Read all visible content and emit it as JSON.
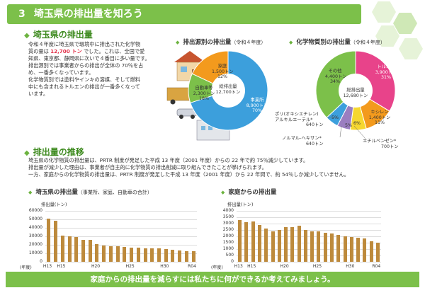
{
  "section": {
    "number": "3",
    "title": "埼玉県の排出量を知ろう"
  },
  "intro": {
    "heading": "埼玉県の排出量",
    "p1_a": "令和４年度に埼玉県で環境中に排出された化学物",
    "p1_b": "質の量は",
    "p1_value": "12,700 トン",
    "p1_c": "でした。これは、全国で愛",
    "p1_d": "知県、東京都、静岡県に次いで４番目に多い量です。",
    "p2_a": "排出源別では事業者からの排出が全体の 70％を占",
    "p2_b": "め、一番多くなっています。",
    "p3_a": "化学物質別では塗料やインキの溶媒、そして燃料",
    "p3_b": "中にも含まれるトルエンの排出が一番多くなって",
    "p3_c": "います。"
  },
  "colors": {
    "green": "#7cc04a",
    "orange": "#f39a1d",
    "blue": "#3c9fdc",
    "pink": "#e8438a",
    "yellow": "#f6d72f",
    "purple": "#9a7ec0",
    "bar": "#bd8a3c"
  },
  "pie_source": {
    "title": "排出源別の排出量",
    "note": "（令和４年度）",
    "center": [
      "総排出量",
      "12,700トン"
    ],
    "slices": [
      {
        "name": "家庭",
        "amount": "1,500トン",
        "pct": "12%"
      },
      {
        "name": "自動車等",
        "amount": "2,300トン",
        "pct": "18%"
      },
      {
        "name": "事業所",
        "amount": "8,900トン",
        "pct": "70%"
      }
    ]
  },
  "pie_chem": {
    "title": "化学物質別の排出量",
    "note": "（令和４年度）",
    "center": [
      "総排出量",
      "12,680トン"
    ],
    "slices": [
      {
        "name": "トルエン",
        "amount": "3,900トン",
        "pct": "31%"
      },
      {
        "name": "キシレン",
        "amount": "1,400トン",
        "pct": "11%"
      },
      {
        "name": "エチルベンゼン",
        "amount": "700トン",
        "pct": "6%"
      },
      {
        "name": "ノルマル-ヘキサン",
        "amount": "640トン",
        "pct": "5%"
      },
      {
        "name": "ポリ(オキシエチレン)アルキルエーテル",
        "amount": "640トン",
        "pct": "5%"
      },
      {
        "name": "その他",
        "amount": "4,400トン",
        "pct": "34%"
      }
    ],
    "labels": {
      "poly1": "ポリ(オキシエチレン)",
      "poly2": "アルキルエーテル*",
      "poly_amt": "640トン",
      "hexane": "ノルマル-ヘキサン*",
      "hexane_amt": "640トン",
      "ethyl": "エチルベンゼン*",
      "ethyl_amt": "700トン",
      "ethyl_pct": "6%",
      "hex_pct": "5%",
      "poly_pct": "5%"
    }
  },
  "trend": {
    "heading": "排出量の推移",
    "l1": "埼玉県の化学物質の排出量は、PRTR 制度が発足した平成 13 年度（2001 年度）からの 22 年で約 75％減少しています。",
    "l2": "排出量が減少した理由は、事業者が自主的に化学物質の排出削減に取り組んできたことが挙げられます。",
    "l3": "一方、家庭からの化学物質の排出量は、PRTR 制度が発足した平成 13 年度（2001 年度）から 22 年間で、約 54％しか減少していません。"
  },
  "chart_data": [
    {
      "type": "bar",
      "title": "埼玉県の排出量",
      "subtitle": "（事業所、家庭、自動車の合計）",
      "ylabel": "排出量(トン)",
      "xlabel": "(年度)",
      "ylim": [
        0,
        60000
      ],
      "yticks": [
        "60000",
        "50000",
        "40000",
        "30000",
        "20000",
        "10000",
        "0"
      ],
      "xticks": [
        "H13",
        "H15",
        "H20",
        "H25",
        "H30",
        "R04"
      ],
      "categories": [
        "H13",
        "H14",
        "H15",
        "H16",
        "H17",
        "H18",
        "H19",
        "H20",
        "H21",
        "H22",
        "H23",
        "H24",
        "H25",
        "H26",
        "H27",
        "H28",
        "H29",
        "H30",
        "R01",
        "R02",
        "R03",
        "R04"
      ],
      "values": [
        50800,
        48500,
        31000,
        30000,
        29500,
        26000,
        26000,
        21000,
        19500,
        18000,
        18000,
        17500,
        17000,
        16500,
        16000,
        16000,
        15500,
        15000,
        14500,
        13000,
        12500,
        12700
      ]
    },
    {
      "type": "bar",
      "title": "家庭からの排出量",
      "ylabel": "排出量(トン)",
      "xlabel": "(年度)",
      "ylim": [
        0,
        4000
      ],
      "yticks": [
        "4000",
        "3500",
        "3000",
        "2500",
        "2000",
        "1500",
        "1000",
        "500",
        "0"
      ],
      "xticks": [
        "H13",
        "H15",
        "H20",
        "H25",
        "H30",
        "R04"
      ],
      "categories": [
        "H13",
        "H14",
        "H15",
        "H16",
        "H17",
        "H18",
        "H19",
        "H20",
        "H21",
        "H22",
        "H23",
        "H24",
        "H25",
        "H26",
        "H27",
        "H28",
        "H29",
        "H30",
        "R01",
        "R02",
        "R03",
        "R04"
      ],
      "values": [
        3300,
        3100,
        3150,
        2900,
        2600,
        2400,
        2500,
        2750,
        2750,
        2850,
        2500,
        2400,
        2400,
        2300,
        2200,
        2100,
        2000,
        1950,
        1900,
        1850,
        1600,
        1500
      ]
    }
  ],
  "footer": "家庭からの排出量を減らすには私たちに何ができるか考えてみましょう。"
}
